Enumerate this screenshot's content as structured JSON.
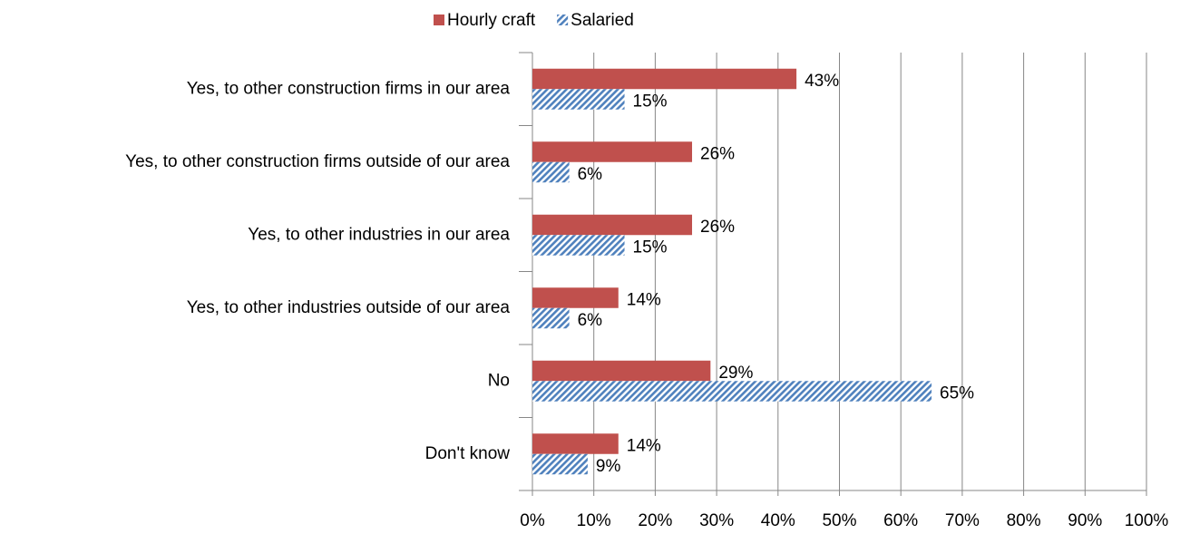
{
  "chart_data": {
    "type": "bar",
    "orientation": "horizontal",
    "categories": [
      "Yes, to other construction firms in our area",
      "Yes, to other construction firms outside of our area",
      "Yes, to other industries in our area",
      "Yes, to other industries outside of our area",
      "No",
      "Don't know"
    ],
    "series": [
      {
        "name": "Hourly craft",
        "color": "#c0504d",
        "values": [
          43,
          26,
          26,
          14,
          29,
          14
        ],
        "value_labels": [
          "43%",
          "26%",
          "26%",
          "14%",
          "29%",
          "14%"
        ]
      },
      {
        "name": "Salaried",
        "color": "#4f81bd",
        "hatch": true,
        "values": [
          15,
          6,
          15,
          6,
          65,
          9
        ],
        "value_labels": [
          "15%",
          "6%",
          "15%",
          "6%",
          "65%",
          "9%"
        ]
      }
    ],
    "xlim": [
      0,
      100
    ],
    "xticks": [
      {
        "value": 0,
        "label": "0%"
      },
      {
        "value": 10,
        "label": "10%"
      },
      {
        "value": 20,
        "label": "20%"
      },
      {
        "value": 30,
        "label": "30%"
      },
      {
        "value": 40,
        "label": "40%"
      },
      {
        "value": 50,
        "label": "50%"
      },
      {
        "value": 60,
        "label": "60%"
      },
      {
        "value": 70,
        "label": "70%"
      },
      {
        "value": 80,
        "label": "80%"
      },
      {
        "value": 90,
        "label": "90%"
      },
      {
        "value": 100,
        "label": "100%"
      }
    ],
    "grid": true,
    "legend": "top"
  }
}
